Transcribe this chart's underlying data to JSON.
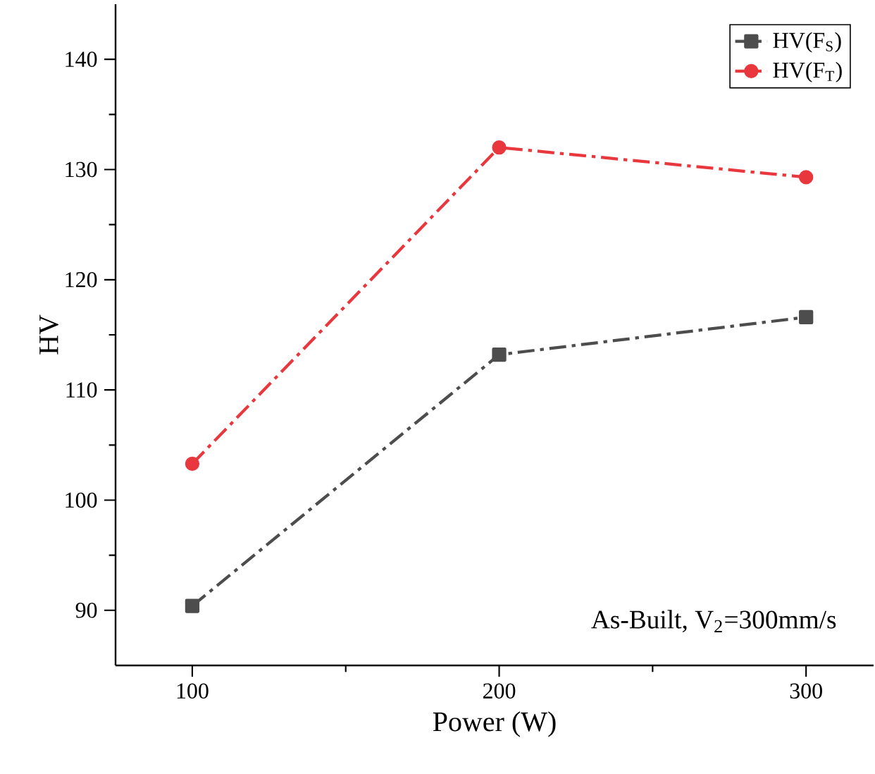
{
  "chart_data": {
    "type": "line",
    "xlabel": "Power (W)",
    "ylabel": "HV",
    "x": [
      100,
      200,
      300
    ],
    "series": [
      {
        "name": "HV(F$_{S}$)",
        "color": "#4d4d4d",
        "marker": "square",
        "values": [
          90.4,
          113.2,
          116.6
        ]
      },
      {
        "name": "HV(F$_{T}$)",
        "color": "#e8383d",
        "marker": "circle",
        "values": [
          103.3,
          132.0,
          129.3
        ]
      }
    ],
    "xlim": [
      75,
      322
    ],
    "xticks": [
      100,
      200,
      300
    ],
    "ylim": [
      85,
      145
    ],
    "yticks": [
      90,
      100,
      110,
      120,
      130,
      140
    ],
    "line_style": "dashdot",
    "legend": "top right",
    "grid": false,
    "annotations": [
      "As-Built, V$_{2}$=300mm/s"
    ]
  }
}
